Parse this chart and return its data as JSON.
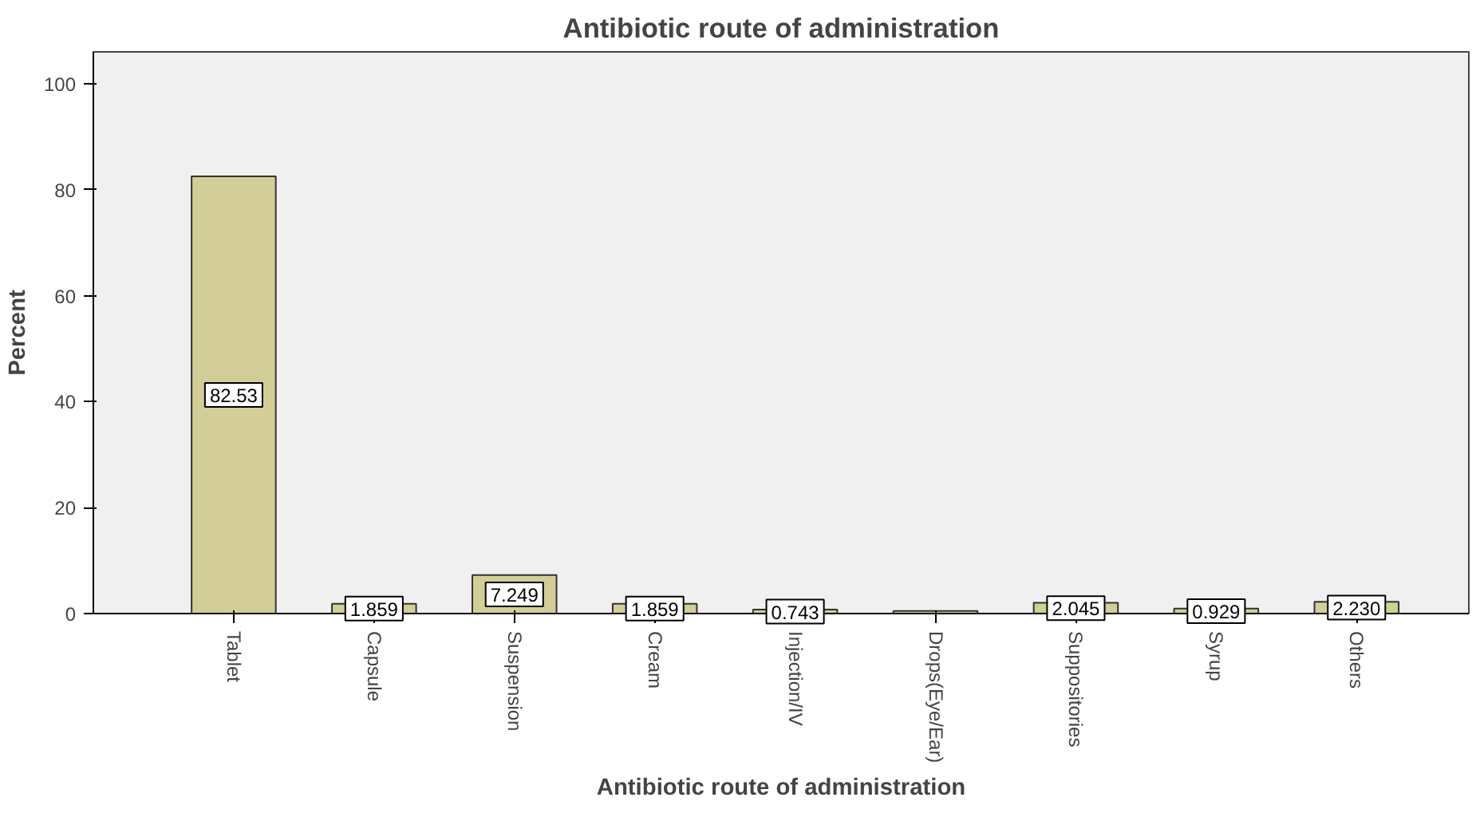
{
  "chart_data": {
    "type": "bar",
    "title": "Antibiotic route of administration",
    "xlabel": "Antibiotic route of administration",
    "ylabel": "Percent",
    "categories": [
      "Tablet",
      "Capsule",
      "Suspension",
      "Cream",
      "Injection/IV",
      "Drops(Eye/Ear)",
      "Suppositories",
      "Syrup",
      "Others"
    ],
    "values": [
      82.53,
      1.859,
      7.249,
      1.859,
      0.743,
      0.5,
      2.045,
      0.929,
      2.23
    ],
    "value_labels": [
      "82.53",
      "1.859",
      "7.249",
      "1.859",
      "0.743",
      null,
      "2.045",
      "0.929",
      "2.230"
    ],
    "color": "#d3cd98",
    "ylim": [
      0,
      106
    ],
    "yticks": [
      0,
      20,
      40,
      60,
      80,
      100
    ],
    "grid": false
  }
}
